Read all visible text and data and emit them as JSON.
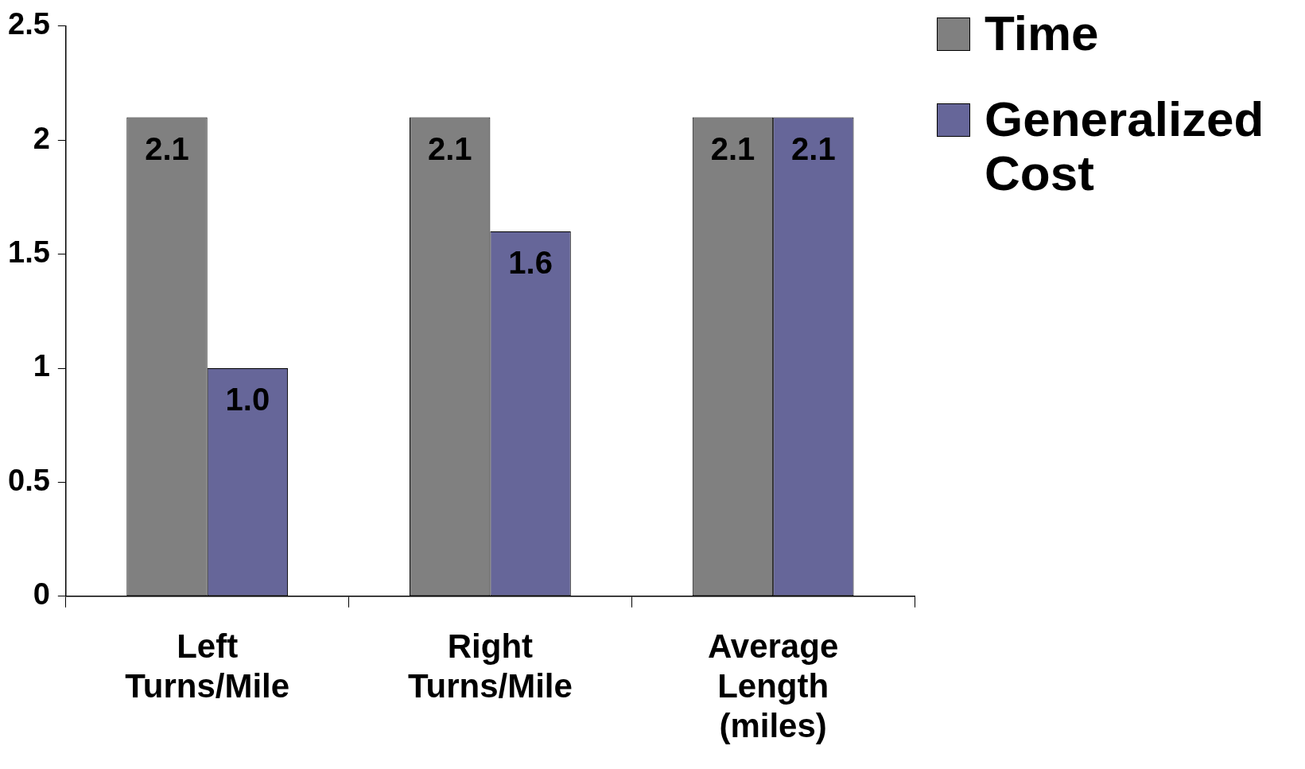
{
  "chart_data": {
    "type": "bar",
    "categories": [
      "Left Turns/Mile",
      "Right Turns/Mile",
      "Average Length (miles)"
    ],
    "series": [
      {
        "name": "Time",
        "color": "#808080",
        "values": [
          2.1,
          2.1,
          2.1
        ],
        "value_labels": [
          "2.1",
          "2.1",
          "2.1"
        ]
      },
      {
        "name": "Generalized Cost",
        "color": "#666699",
        "values": [
          1.0,
          1.6,
          2.1
        ],
        "value_labels": [
          "1.0",
          "1.6",
          "2.1"
        ]
      }
    ],
    "ylim": [
      0,
      2.5
    ],
    "yticks": [
      0,
      0.5,
      1,
      1.5,
      2,
      2.5
    ],
    "grid": false,
    "legend": "top right"
  }
}
